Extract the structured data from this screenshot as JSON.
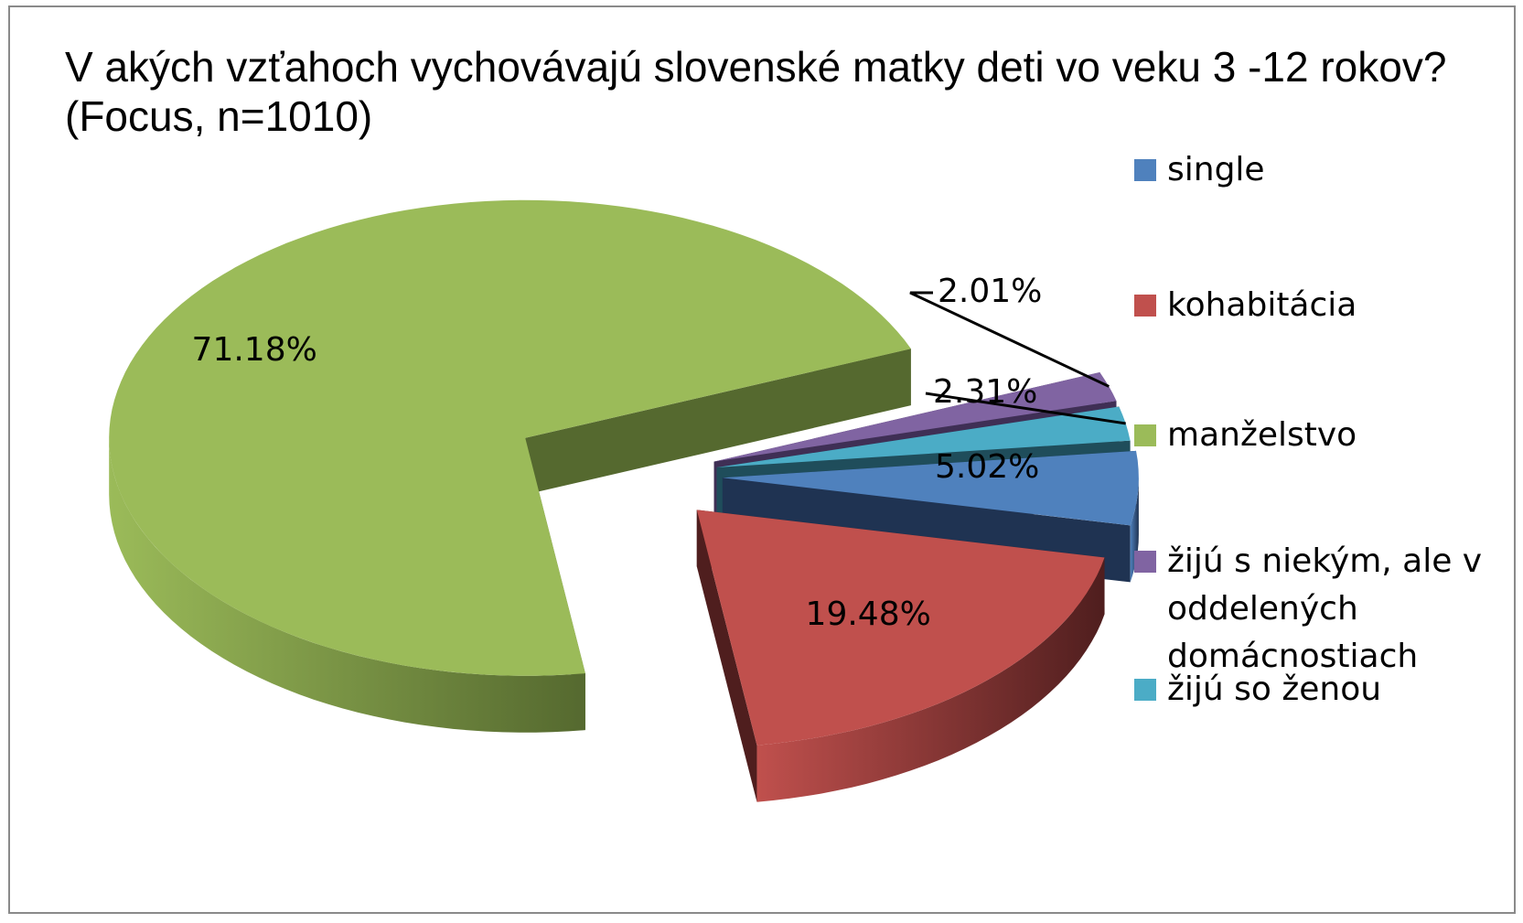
{
  "chart_data": {
    "type": "pie",
    "title": "V akých vzťahoch vychovávajú slovenské matky deti vo veku 3 -12 rokov? (Focus, n=1010)",
    "categories": [
      "single",
      "kohabitácia",
      "manželstvo",
      "žijú s niekým, ale v oddelených domácnostiach",
      "žijú so ženou"
    ],
    "values": [
      5.02,
      19.48,
      71.18,
      2.01,
      2.31
    ],
    "value_labels": [
      "5.02%",
      "19.48%",
      "71.18%",
      "2.01%",
      "2.31%"
    ],
    "colors": [
      "#4F81BD",
      "#C0504D",
      "#9BBB59",
      "#8064A2",
      "#4BACC6"
    ],
    "side_colors": [
      "#1F3352",
      "#4F1E1E",
      "#55692F",
      "#3F2F55",
      "#1F4D5B"
    ],
    "legend_position": "right",
    "style": "3d-exploded"
  }
}
